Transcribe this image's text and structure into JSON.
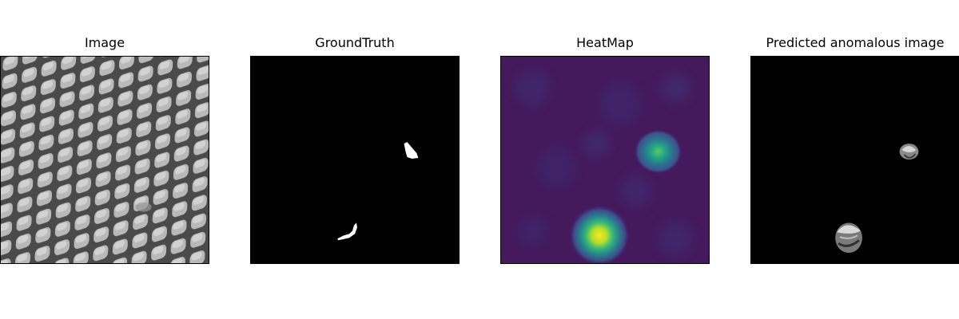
{
  "panels": [
    {
      "title": "Image",
      "content_icon": "metal-grid-texture",
      "background": "#8c8c8c"
    },
    {
      "title": "GroundTruth",
      "content_icon": "binary-defect-mask",
      "background": "#000000",
      "mask_color": "#ffffff"
    },
    {
      "title": "HeatMap",
      "content_icon": "anomaly-heatmap",
      "background": "#440154",
      "hot_color": "#fde725",
      "mid_color": "#21918c"
    },
    {
      "title": "Predicted anomalous image",
      "content_icon": "segmented-defects",
      "background": "#000000"
    }
  ]
}
